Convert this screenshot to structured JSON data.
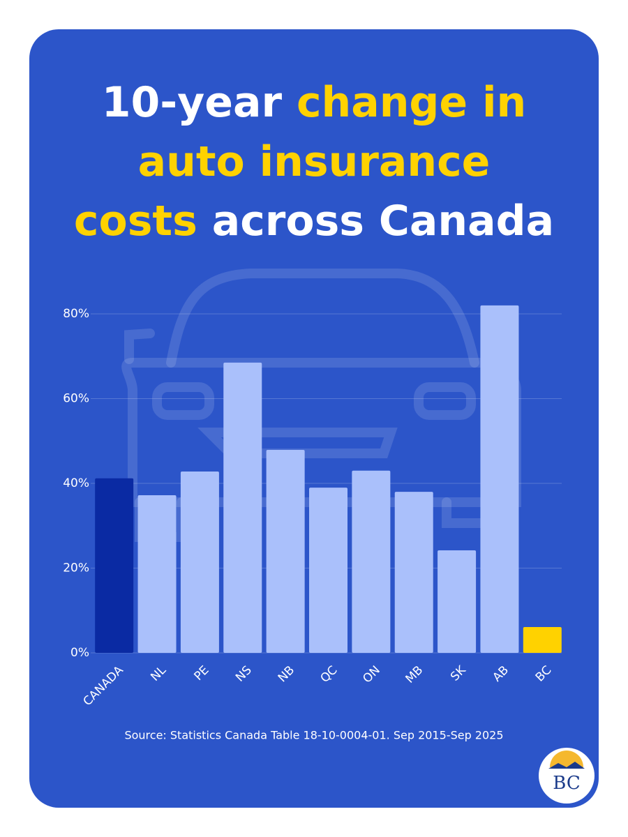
{
  "chart_data": {
    "type": "bar",
    "title_lines": [
      [
        {
          "text": "10-year",
          "highlight": false
        },
        {
          "text": "change in",
          "highlight": true
        }
      ],
      [
        {
          "text": "auto insurance",
          "highlight": true
        }
      ],
      [
        {
          "text": "costs",
          "highlight": true
        },
        {
          "text": "across Canada",
          "highlight": false
        }
      ]
    ],
    "title_color": "#ffffff",
    "highlight_color": "#ffd200",
    "categories": [
      "CANADA",
      "NL",
      "PE",
      "NS",
      "NB",
      "QC",
      "ON",
      "MB",
      "SK",
      "AB",
      "BC"
    ],
    "values": [
      41.2,
      37.2,
      42.8,
      68.5,
      47.9,
      39.0,
      43.0,
      38.0,
      24.2,
      82.0,
      6.1
    ],
    "colors": [
      "#0a2aa3",
      "#aac0fb",
      "#aac0fb",
      "#aac0fb",
      "#aac0fb",
      "#aac0fb",
      "#aac0fb",
      "#aac0fb",
      "#aac0fb",
      "#aac0fb",
      "#ffd200"
    ],
    "ylim": [
      0,
      85
    ],
    "yticks": [
      {
        "value": 0,
        "label": "0%"
      },
      {
        "value": 20,
        "label": "20%"
      },
      {
        "value": 40,
        "label": "40%"
      },
      {
        "value": 60,
        "label": "60%"
      },
      {
        "value": 80,
        "label": "80%"
      }
    ],
    "grid": true,
    "source": "Source: Statistics Canada Table 18-10-0004-01. Sep 2015-Sep 2025",
    "logo_text": "BC"
  }
}
